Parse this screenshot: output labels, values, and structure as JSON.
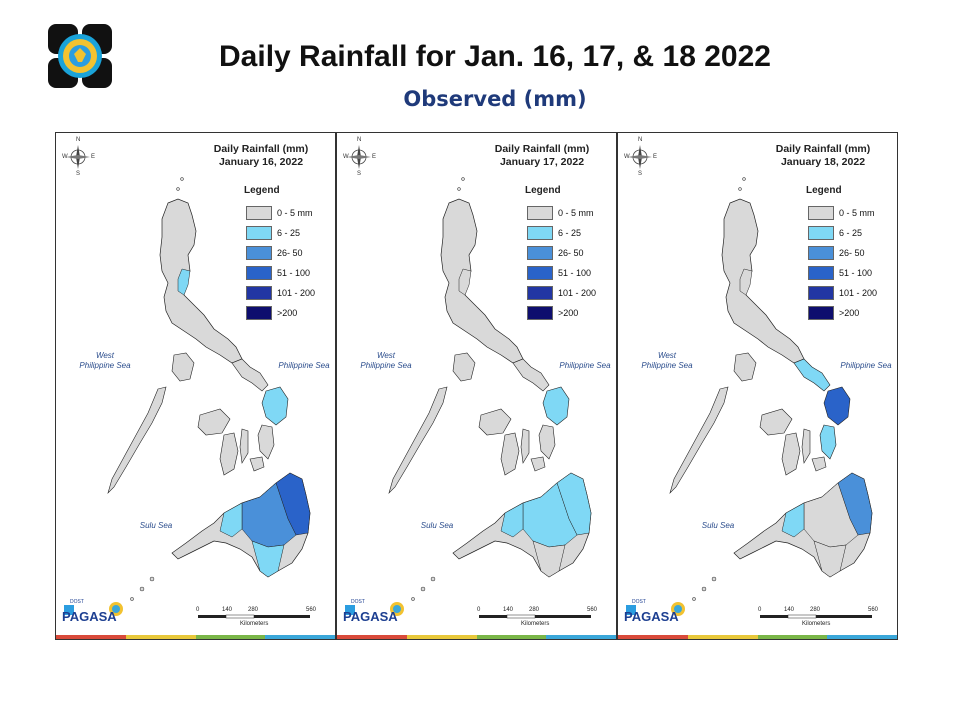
{
  "header": {
    "title": "Daily Rainfall for Jan. 16, 17, & 18 2022",
    "subtitle": "Observed (mm)"
  },
  "legend": {
    "title": "Legend",
    "classes": [
      {
        "label": "0 - 5 mm",
        "color": "#d9d9d9"
      },
      {
        "label": "6 - 25",
        "color": "#7fd8f5"
      },
      {
        "label": "26- 50",
        "color": "#4a90d9"
      },
      {
        "label": "51 - 100",
        "color": "#2a63c9"
      },
      {
        "label": "101 - 200",
        "color": "#2236a3"
      },
      {
        "label": ">200",
        "color": "#0e0e6e"
      }
    ]
  },
  "panels": [
    {
      "title_line1": "Daily Rainfall (mm)",
      "title_line2": "January 16, 2022"
    },
    {
      "title_line1": "Daily Rainfall (mm)",
      "title_line2": "January 17, 2022"
    },
    {
      "title_line1": "Daily Rainfall (mm)",
      "title_line2": "January 18, 2022"
    }
  ],
  "labels": {
    "west_sea_1": "West",
    "west_sea_2": "Philippine Sea",
    "philippine_sea": "Philippine Sea",
    "sulu_sea": "Sulu Sea",
    "scale_ticks": [
      "0",
      "140",
      "280",
      "560"
    ],
    "scale_unit": "Kilometers",
    "compass": {
      "n": "N",
      "s": "S",
      "e": "E",
      "w": "W"
    },
    "org_small": "DOST",
    "org_name": "PAGASA"
  },
  "colors": {
    "title_blue": "#1f3a7a",
    "stripe": [
      "#d94a3a",
      "#e8c83a",
      "#7ab648",
      "#3aa7d9"
    ]
  }
}
